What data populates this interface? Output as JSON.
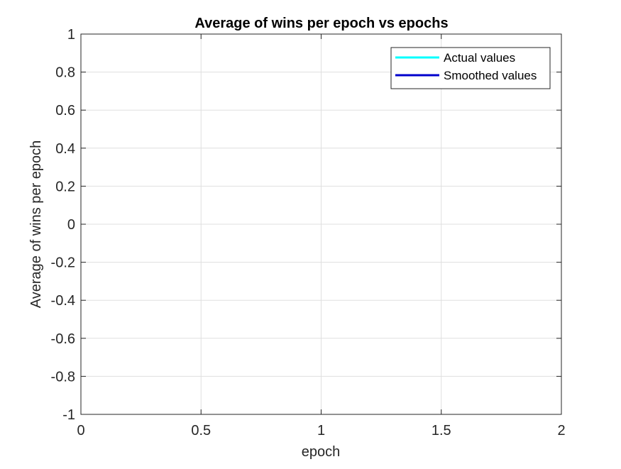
{
  "chart_data": {
    "type": "line",
    "title": "Average of wins per epoch vs epochs",
    "xlabel": "epoch",
    "ylabel": "Average of wins per epoch",
    "xlim": [
      0,
      2
    ],
    "ylim": [
      -1,
      1
    ],
    "x_ticks": [
      0,
      0.5,
      1,
      1.5,
      2
    ],
    "x_tick_labels": [
      "0",
      "0.5",
      "1",
      "1.5",
      "2"
    ],
    "y_ticks": [
      -1,
      -0.8,
      -0.6,
      -0.4,
      -0.2,
      0,
      0.2,
      0.4,
      0.6,
      0.8,
      1
    ],
    "y_tick_labels": [
      "-1",
      "-0.8",
      "-0.6",
      "-0.4",
      "-0.2",
      "0",
      "0.2",
      "0.4",
      "0.6",
      "0.8",
      "1"
    ],
    "grid": true,
    "legend_position": "top-right",
    "series": [
      {
        "name": "Actual values",
        "color": "#00ffff",
        "x": [],
        "y": []
      },
      {
        "name": "Smoothed values",
        "color": "#0000cd",
        "x": [],
        "y": []
      }
    ]
  }
}
